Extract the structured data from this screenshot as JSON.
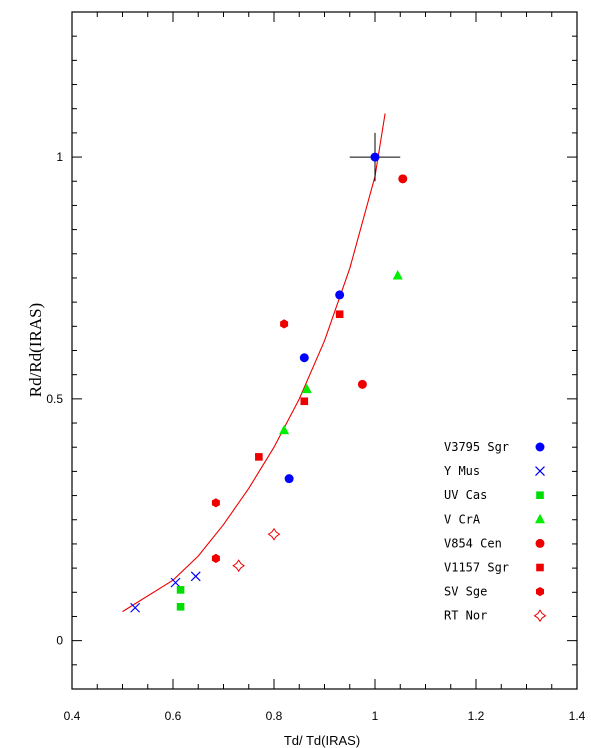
{
  "chart_data": {
    "type": "scatter",
    "title": "",
    "xlabel": "Td/ Td(IRAS)",
    "ylabel": "Rd/Rd(IRAS)",
    "xlim": [
      0.4,
      1.4
    ],
    "ylim": [
      -0.1,
      1.3
    ],
    "x_ticks": [
      0.4,
      0.6,
      0.8,
      1,
      1.2,
      1.4
    ],
    "x_tick_labels": [
      "0.4",
      "0.6",
      "0.8",
      "1",
      "1.2",
      "1.4"
    ],
    "y_ticks": [
      0,
      0.5,
      1
    ],
    "y_tick_labels": [
      "0",
      "0.5",
      "1"
    ],
    "legend_position": "bottom-right",
    "series": [
      {
        "name": "V3795 Sgr",
        "color": "#0000ff",
        "marker": "circle",
        "points": [
          [
            0.83,
            0.335
          ],
          [
            0.86,
            0.585
          ],
          [
            0.93,
            0.715
          ],
          [
            1.0,
            1.0
          ]
        ]
      },
      {
        "name": "Y Mus",
        "color": "#0000ff",
        "marker": "cross",
        "points": [
          [
            0.525,
            0.068
          ],
          [
            0.605,
            0.12
          ],
          [
            0.645,
            0.133
          ]
        ]
      },
      {
        "name": "UV Cas",
        "color": "#00dd00",
        "marker": "square",
        "points": [
          [
            0.615,
            0.105
          ],
          [
            0.615,
            0.07
          ]
        ]
      },
      {
        "name": "V CrA",
        "color": "#00ee00",
        "marker": "triangle",
        "points": [
          [
            0.82,
            0.435
          ],
          [
            0.865,
            0.52
          ],
          [
            1.045,
            0.755
          ]
        ]
      },
      {
        "name": "V854 Cen",
        "color": "#ee0000",
        "marker": "circle",
        "points": [
          [
            0.975,
            0.53
          ],
          [
            1.055,
            0.955
          ]
        ]
      },
      {
        "name": "V1157 Sgr",
        "color": "#ee0000",
        "marker": "square",
        "points": [
          [
            0.77,
            0.38
          ],
          [
            0.86,
            0.495
          ],
          [
            0.93,
            0.675
          ]
        ]
      },
      {
        "name": "SV Sge",
        "color": "#ee0000",
        "marker": "hexagon",
        "points": [
          [
            0.685,
            0.285
          ],
          [
            0.685,
            0.17
          ],
          [
            0.82,
            0.655
          ]
        ]
      },
      {
        "name": "RT Nor",
        "color": "#ee0000",
        "marker": "star4",
        "points": [
          [
            0.73,
            0.155
          ],
          [
            0.8,
            0.22
          ]
        ]
      }
    ],
    "model_curve": {
      "color": "#ee0000",
      "points": [
        [
          0.5,
          0.06
        ],
        [
          0.6,
          0.125
        ],
        [
          0.65,
          0.175
        ],
        [
          0.7,
          0.24
        ],
        [
          0.75,
          0.315
        ],
        [
          0.8,
          0.4
        ],
        [
          0.85,
          0.5
        ],
        [
          0.9,
          0.62
        ],
        [
          0.95,
          0.77
        ],
        [
          1.0,
          0.96
        ],
        [
          1.02,
          1.09
        ]
      ]
    },
    "error_bars": {
      "x": 1.0,
      "y": 1.0,
      "x_err": [
        0.05,
        0.05
      ],
      "y_err": [
        0.05,
        0.05
      ],
      "color": "#000000"
    }
  }
}
